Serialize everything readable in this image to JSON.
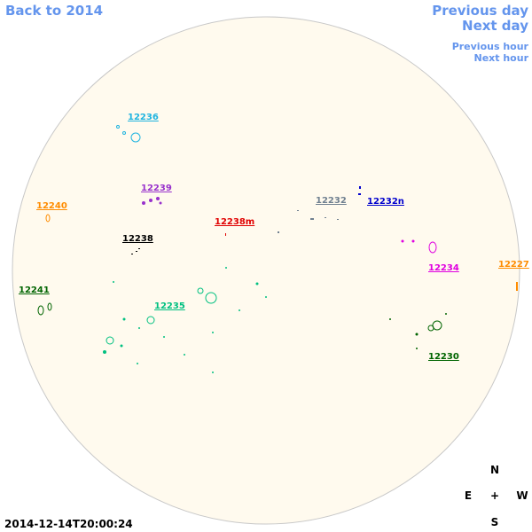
{
  "nav": {
    "back": "Back to 2014",
    "previous_day": "Previous day",
    "next_day": "Next day",
    "previous_hour": "Previous hour",
    "next_hour": "Next hour"
  },
  "regions": [
    {
      "label": "12236",
      "color": "#1fb4e0"
    },
    {
      "label": "12239",
      "color": "#9932cc"
    },
    {
      "label": "12240",
      "color": "#ff8c00"
    },
    {
      "label": "12238m",
      "color": "#e00000"
    },
    {
      "label": "12238",
      "color": "#000000"
    },
    {
      "label": "12232",
      "color": "#708090"
    },
    {
      "label": "12232n",
      "color": "#0000cd"
    },
    {
      "label": "12234",
      "color": "#e000e0"
    },
    {
      "label": "12227",
      "color": "#ff8c00"
    },
    {
      "label": "12241",
      "color": "#006400"
    },
    {
      "label": "12235",
      "color": "#00c080"
    },
    {
      "label": "12230",
      "color": "#006400"
    }
  ],
  "compass": {
    "north": "N",
    "east": "E",
    "center": "+",
    "west": "W",
    "south": "S"
  },
  "timestamp": "2014-12-14T20:00:24"
}
